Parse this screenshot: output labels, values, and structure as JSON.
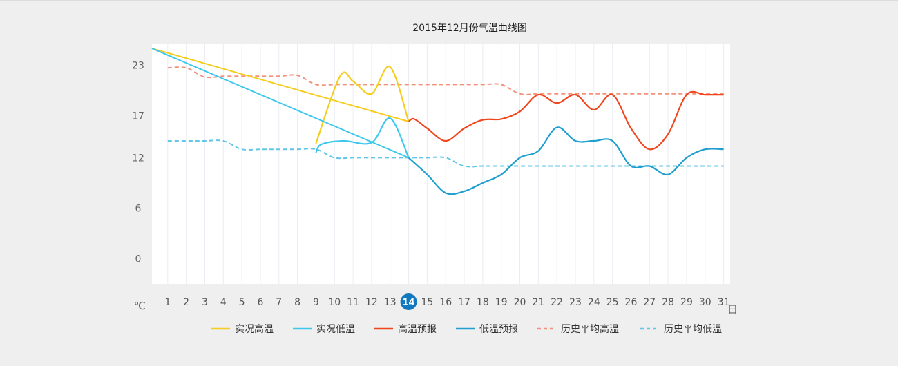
{
  "chart_data": {
    "type": "line",
    "title": "2015年12月份气温曲线图",
    "ylabel": "℃",
    "xlabel": "日",
    "ylim": [
      -3,
      25.5
    ],
    "xlim": [
      0.15,
      31.35
    ],
    "yticks": [
      0,
      6,
      12,
      17,
      23
    ],
    "x": [
      1,
      2,
      3,
      4,
      5,
      6,
      7,
      8,
      9,
      10,
      11,
      12,
      13,
      14,
      15,
      16,
      17,
      18,
      19,
      20,
      21,
      22,
      23,
      24,
      25,
      26,
      27,
      28,
      29,
      30,
      31
    ],
    "today": 14,
    "grid": "vertical",
    "legend": "bottom",
    "series": [
      {
        "name": "实况高温",
        "color": "#f5cd1f",
        "style": "solid",
        "points": [
          [
            9,
            13.7
          ],
          [
            10.3,
            21.7
          ],
          [
            11,
            21.1
          ],
          [
            12,
            19.6
          ],
          [
            13,
            22.8
          ],
          [
            14,
            16.3
          ]
        ],
        "trend": [
          [
            0.15,
            25
          ],
          [
            14,
            16.3
          ]
        ]
      },
      {
        "name": "实况低温",
        "color": "#3ec8ec",
        "style": "solid",
        "points": [
          [
            9,
            12.6
          ],
          [
            9.3,
            13.6
          ],
          [
            10.5,
            14.0
          ],
          [
            12,
            13.8
          ],
          [
            13,
            16.7
          ],
          [
            14,
            12.0
          ]
        ],
        "trend": [
          [
            0.15,
            25
          ],
          [
            14,
            12.0
          ]
        ]
      },
      {
        "name": "高温预报",
        "color": "#f0461e",
        "style": "solid",
        "points": [
          [
            14,
            16.3
          ],
          [
            14.3,
            16.6
          ],
          [
            15,
            15.5
          ],
          [
            16,
            14.0
          ],
          [
            17,
            15.5
          ],
          [
            18,
            16.5
          ],
          [
            19,
            16.6
          ],
          [
            20,
            17.5
          ],
          [
            21,
            19.5
          ],
          [
            22,
            18.5
          ],
          [
            23,
            19.5
          ],
          [
            24,
            17.7
          ],
          [
            25,
            19.5
          ],
          [
            26,
            15.5
          ],
          [
            27,
            13.0
          ],
          [
            28,
            14.8
          ],
          [
            29,
            19.5
          ],
          [
            30,
            19.5
          ],
          [
            31,
            19.5
          ]
        ]
      },
      {
        "name": "低温预报",
        "color": "#1e9fd0",
        "style": "solid",
        "points": [
          [
            14,
            12.0
          ],
          [
            15,
            10.0
          ],
          [
            16,
            7.8
          ],
          [
            17,
            8.0
          ],
          [
            18,
            9.0
          ],
          [
            19,
            10.0
          ],
          [
            20,
            12.0
          ],
          [
            21,
            12.8
          ],
          [
            22,
            15.6
          ],
          [
            23,
            14.0
          ],
          [
            24,
            14.0
          ],
          [
            25,
            14.0
          ],
          [
            26,
            11.0
          ],
          [
            27,
            11.0
          ],
          [
            28,
            10.0
          ],
          [
            29,
            12.0
          ],
          [
            30,
            13.0
          ],
          [
            31,
            13.0
          ]
        ]
      },
      {
        "name": "历史平均高温",
        "color": "#f3917b",
        "style": "dashed",
        "points": [
          [
            1,
            22.7
          ],
          [
            2,
            22.7
          ],
          [
            3,
            21.6
          ],
          [
            4,
            21.7
          ],
          [
            5,
            21.7
          ],
          [
            6,
            21.7
          ],
          [
            7,
            21.7
          ],
          [
            8,
            21.8
          ],
          [
            9,
            20.7
          ],
          [
            10,
            20.7
          ],
          [
            11,
            20.7
          ],
          [
            12,
            20.7
          ],
          [
            13,
            20.7
          ],
          [
            14,
            20.7
          ],
          [
            15,
            20.7
          ],
          [
            16,
            20.7
          ],
          [
            17,
            20.7
          ],
          [
            18,
            20.7
          ],
          [
            19,
            20.7
          ],
          [
            20,
            19.6
          ],
          [
            21,
            19.6
          ],
          [
            22,
            19.6
          ],
          [
            23,
            19.6
          ],
          [
            24,
            19.6
          ],
          [
            25,
            19.6
          ],
          [
            26,
            19.6
          ],
          [
            27,
            19.6
          ],
          [
            28,
            19.6
          ],
          [
            29,
            19.6
          ],
          [
            30,
            19.6
          ],
          [
            31,
            19.6
          ]
        ]
      },
      {
        "name": "历史平均低温",
        "color": "#62c6e6",
        "style": "dashed",
        "points": [
          [
            1,
            14
          ],
          [
            2,
            14
          ],
          [
            3,
            14
          ],
          [
            4,
            14
          ],
          [
            5,
            13
          ],
          [
            6,
            13
          ],
          [
            7,
            13
          ],
          [
            8,
            13
          ],
          [
            9,
            13
          ],
          [
            10,
            12
          ],
          [
            11,
            12
          ],
          [
            12,
            12
          ],
          [
            13,
            12
          ],
          [
            14,
            12
          ],
          [
            15,
            12
          ],
          [
            16,
            12
          ],
          [
            17,
            11
          ],
          [
            18,
            11
          ],
          [
            19,
            11
          ],
          [
            20,
            11
          ],
          [
            21,
            11
          ],
          [
            22,
            11
          ],
          [
            23,
            11
          ],
          [
            24,
            11
          ],
          [
            25,
            11
          ],
          [
            26,
            11
          ],
          [
            27,
            11
          ],
          [
            28,
            11
          ],
          [
            29,
            11
          ],
          [
            30,
            11
          ],
          [
            31,
            11
          ]
        ]
      }
    ]
  }
}
